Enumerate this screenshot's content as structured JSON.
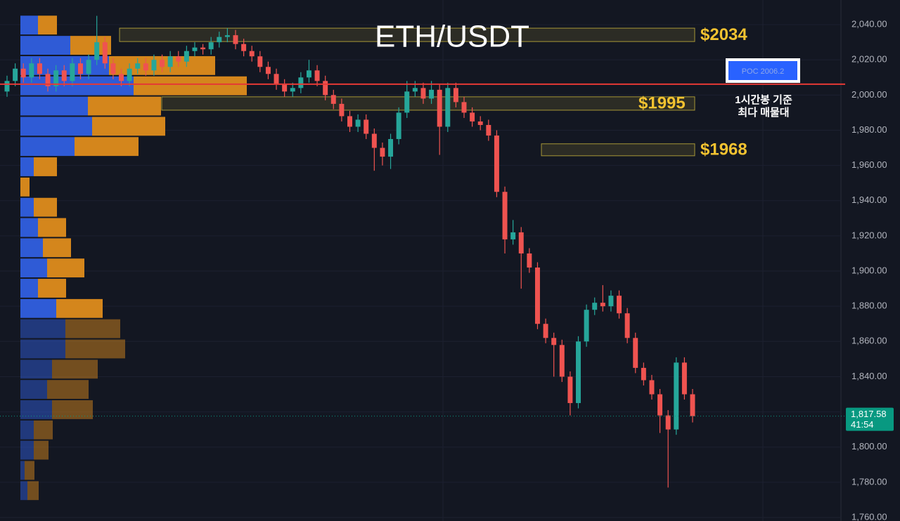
{
  "chart_data": {
    "type": "candlestick",
    "title": "ETH/USDT",
    "open": [
      2002,
      2008,
      2015,
      2010,
      2018,
      2012,
      2005,
      2014,
      2008,
      2018,
      2012,
      2020,
      2030,
      2018,
      2012,
      2008,
      2015,
      2018,
      2014,
      2020,
      2016,
      2022,
      2019,
      2025,
      2027,
      2026,
      2030,
      2033,
      2034,
      2029,
      2025,
      2022,
      2016,
      2012,
      2006,
      2002,
      2004,
      2010,
      2014,
      2008,
      2000,
      1995,
      1988,
      1982,
      1986,
      1978,
      1970,
      1965,
      1975,
      1990,
      2002,
      2004,
      1998,
      2003,
      1982,
      2004,
      1996,
      1990,
      1985,
      1983,
      1977,
      1945,
      1918,
      1922,
      1910,
      1902,
      1870,
      1862,
      1858,
      1840,
      1825,
      1860,
      1878,
      1882,
      1880,
      1886,
      1876,
      1862,
      1845,
      1838,
      1830,
      1818,
      1810,
      1848,
      1830
    ],
    "high": [
      2011,
      2018,
      2018,
      2021,
      2021,
      2015,
      2017,
      2017,
      2021,
      2021,
      2023,
      2045,
      2033,
      2021,
      2015,
      2018,
      2021,
      2021,
      2023,
      2023,
      2025,
      2025,
      2028,
      2030,
      2029,
      2033,
      2036,
      2038,
      2037,
      2032,
      2028,
      2025,
      2019,
      2015,
      2009,
      2007,
      2013,
      2020,
      2017,
      2011,
      2003,
      1998,
      1991,
      1989,
      1989,
      1981,
      1973,
      1978,
      1993,
      2008,
      2008,
      2007,
      2008,
      2006,
      2007,
      2007,
      1999,
      1993,
      1988,
      1986,
      1980,
      1948,
      1929,
      1925,
      1913,
      1905,
      1873,
      1865,
      1861,
      1843,
      1863,
      1881,
      1885,
      1892,
      1889,
      1889,
      1879,
      1865,
      1848,
      1841,
      1833,
      1821,
      1851,
      1851,
      1833
    ],
    "low": [
      1999,
      2005,
      2007,
      2007,
      2009,
      2002,
      2002,
      2005,
      2005,
      2009,
      2009,
      2017,
      2015,
      2009,
      2005,
      2005,
      2012,
      2011,
      2011,
      2013,
      2013,
      2016,
      2016,
      2022,
      2023,
      2023,
      2027,
      2030,
      2026,
      2022,
      2019,
      2013,
      2009,
      2003,
      1999,
      1999,
      2001,
      2007,
      2005,
      1997,
      1992,
      1985,
      1979,
      1979,
      1975,
      1957,
      1960,
      1958,
      1972,
      1987,
      1999,
      1995,
      1995,
      1966,
      1979,
      1993,
      1987,
      1982,
      1980,
      1974,
      1942,
      1910,
      1915,
      1890,
      1899,
      1867,
      1859,
      1840,
      1837,
      1818,
      1822,
      1857,
      1875,
      1877,
      1877,
      1873,
      1859,
      1842,
      1835,
      1827,
      1808,
      1777,
      1807,
      1827,
      1814
    ],
    "close": [
      2008,
      2015,
      2010,
      2018,
      2012,
      2005,
      2014,
      2008,
      2018,
      2012,
      2020,
      2030,
      2018,
      2012,
      2008,
      2015,
      2018,
      2014,
      2020,
      2016,
      2022,
      2019,
      2025,
      2027,
      2026,
      2030,
      2033,
      2034,
      2029,
      2025,
      2022,
      2016,
      2012,
      2006,
      2002,
      2004,
      2010,
      2014,
      2008,
      2000,
      1995,
      1988,
      1982,
      1986,
      1978,
      1970,
      1965,
      1975,
      1990,
      2002,
      2004,
      1998,
      2003,
      1982,
      2004,
      1996,
      1990,
      1985,
      1983,
      1977,
      1945,
      1918,
      1922,
      1910,
      1902,
      1870,
      1862,
      1858,
      1840,
      1825,
      1860,
      1878,
      1882,
      1880,
      1886,
      1876,
      1862,
      1845,
      1838,
      1830,
      1818,
      1810,
      1848,
      1830,
      1817.58
    ],
    "up_color": "#26a69a",
    "down_color": "#ef5350",
    "ylim": [
      1758,
      2054
    ],
    "yticks": [
      {
        "value": 2040,
        "label": "2,040.00"
      },
      {
        "value": 2020,
        "label": "2,020.00"
      },
      {
        "value": 2000,
        "label": "2,000.00"
      },
      {
        "value": 1980,
        "label": "1,980.00"
      },
      {
        "value": 1960,
        "label": "1,960.00"
      },
      {
        "value": 1940,
        "label": "1,940.00"
      },
      {
        "value": 1920,
        "label": "1,920.00"
      },
      {
        "value": 1900,
        "label": "1,900.00"
      },
      {
        "value": 1880,
        "label": "1,880.00"
      },
      {
        "value": 1860,
        "label": "1,860.00"
      },
      {
        "value": 1840,
        "label": "1,840.00"
      },
      {
        "value": 1820,
        "label": "1,820.00"
      },
      {
        "value": 1800,
        "label": "1,800.00"
      },
      {
        "value": 1780,
        "label": "1,780.00"
      },
      {
        "value": 1760,
        "label": "1,760.00"
      }
    ],
    "grid": true,
    "volume_profile": {
      "bins": [
        1769.5,
        1781,
        1792.5,
        1804,
        1815.5,
        1827,
        1838.5,
        1850,
        1861.5,
        1873,
        1884.5,
        1896,
        1907.5,
        1919,
        1930.5,
        1942,
        1953.5,
        1965,
        1976.5,
        1988,
        1999.5,
        2011,
        2022.5,
        2034,
        2045.5
      ],
      "buy": [
        10,
        6,
        19,
        19,
        45,
        38,
        45,
        64,
        64,
        51,
        25,
        38,
        32,
        25,
        19,
        0,
        19,
        77,
        102,
        96,
        161,
        126,
        71,
        25
      ],
      "sell": [
        16,
        14,
        21,
        27,
        58,
        59,
        65,
        85,
        78,
        66,
        40,
        53,
        40,
        40,
        33,
        13,
        33,
        91,
        104,
        104,
        161,
        151,
        58,
        27
      ],
      "buy_color": "#2f5bd6",
      "sell_color": "#d4861c",
      "value_area": [
        1873,
        2045.5
      ]
    },
    "levels": [
      {
        "label": "$2034",
        "low": 2030.4,
        "high": 2038
      },
      {
        "label": "$1995",
        "low": 1991.4,
        "high": 1999
      },
      {
        "label": "$1968",
        "low": 1965.5,
        "high": 1972.3
      }
    ],
    "level_color": "#c8b43c",
    "poc": {
      "value": 2006.2,
      "label": "POC  2006.2",
      "color": "#e53935"
    },
    "annotation": [
      "1시간봉 기준",
      "최다 매물대"
    ],
    "last_price": {
      "value": 1817.58,
      "label": "1,817.58",
      "countdown": "41:54",
      "color": "#089981"
    }
  }
}
